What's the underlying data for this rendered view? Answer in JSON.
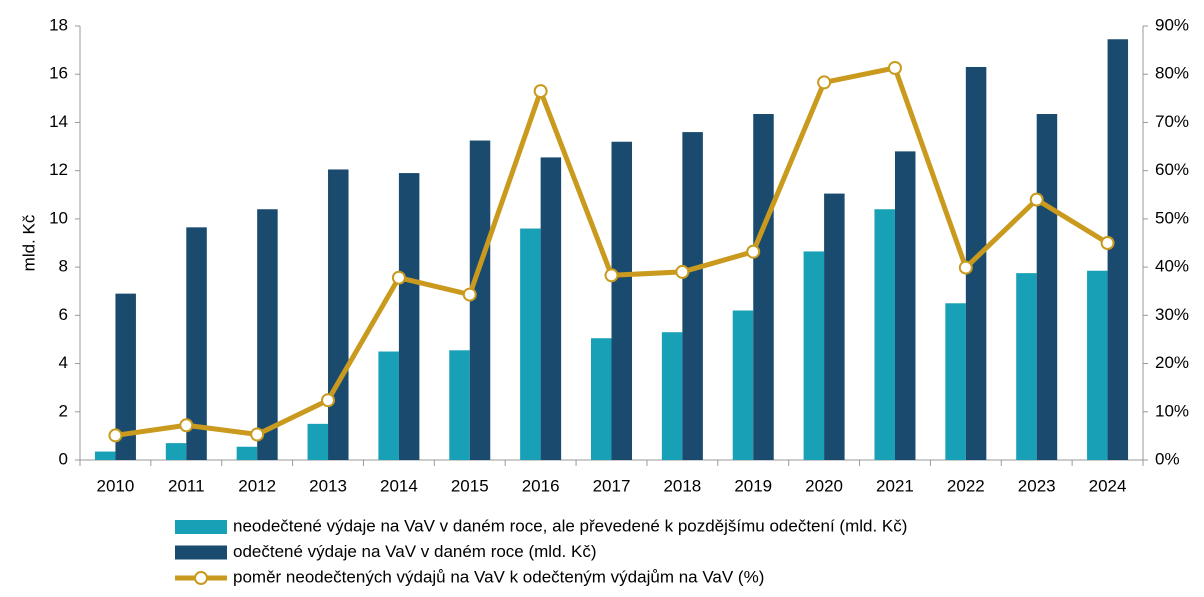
{
  "chart_data": {
    "type": "bar",
    "categories": [
      "2010",
      "2011",
      "2012",
      "2013",
      "2014",
      "2015",
      "2016",
      "2017",
      "2018",
      "2019",
      "2020",
      "2021",
      "2022",
      "2023",
      "2024"
    ],
    "ylabel": "mld. Kč",
    "ylim": [
      0,
      18
    ],
    "yticks": [
      0,
      2,
      4,
      6,
      8,
      10,
      12,
      14,
      16,
      18
    ],
    "y2lim": [
      0,
      90
    ],
    "y2ticks": [
      {
        "value": 0,
        "label": "0%"
      },
      {
        "value": 10,
        "label": "10%"
      },
      {
        "value": 20,
        "label": "20%"
      },
      {
        "value": 30,
        "label": "30%"
      },
      {
        "value": 40,
        "label": "40%"
      },
      {
        "value": 50,
        "label": "50%"
      },
      {
        "value": 60,
        "label": "60%"
      },
      {
        "value": 70,
        "label": "70%"
      },
      {
        "value": 80,
        "label": "80%"
      },
      {
        "value": 90,
        "label": "90%"
      }
    ],
    "series": [
      {
        "name": "neodečtené výdaje na VaV v daném roce, ale převedené k pozdějšímu odečtení (mld. Kč)",
        "color": "#17a0b6",
        "type": "bar",
        "values": [
          0.35,
          0.7,
          0.55,
          1.5,
          4.5,
          4.55,
          9.6,
          5.05,
          5.3,
          6.2,
          8.65,
          10.4,
          6.5,
          7.75,
          7.85
        ]
      },
      {
        "name": "odečtené výdaje na VaV v daném roce (mld. Kč)",
        "color": "#1a4b6e",
        "type": "bar",
        "values": [
          6.9,
          9.65,
          10.4,
          12.05,
          11.9,
          13.25,
          12.55,
          13.2,
          13.6,
          14.35,
          11.05,
          12.8,
          16.3,
          14.35,
          17.45
        ]
      },
      {
        "name": "poměr neodečtených výdajů na VaV k odečteným výdajům na VaV (%)",
        "color": "#c99a1e",
        "type": "line",
        "axis": "y2",
        "values": [
          5.1,
          7.2,
          5.3,
          12.4,
          37.8,
          34.3,
          76.5,
          38.3,
          39.0,
          43.2,
          78.3,
          81.3,
          39.9,
          54.0,
          45.0
        ]
      }
    ],
    "legend": "bottom"
  }
}
